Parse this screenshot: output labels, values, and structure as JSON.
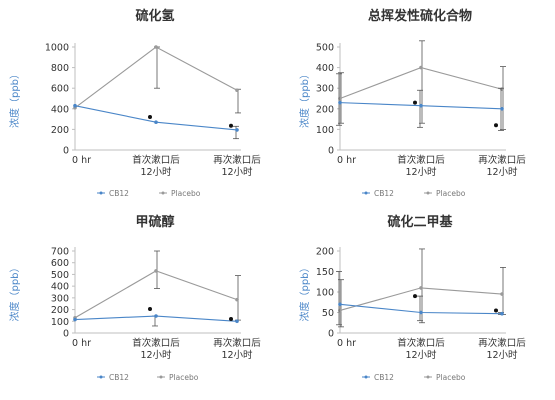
{
  "colors": {
    "cb12": "#4a86c8",
    "placebo": "#9a9a9a",
    "axis": "#bfbfbf",
    "text": "#333333",
    "ylabel": "#4a86c8"
  },
  "x_labels": [
    [
      "0 hr"
    ],
    [
      "首次漱口后",
      "12小时"
    ],
    [
      "再次漱口后",
      "12小时"
    ]
  ],
  "legend": {
    "cb12": "CB12",
    "placebo": "Placebo"
  },
  "ylabel": "浓度（ppb）",
  "chart_data": [
    {
      "type": "line",
      "title": "硫化氢",
      "ylabel": "浓度（ppb）",
      "ylim": [
        0,
        1000
      ],
      "yticks": [
        0,
        200,
        400,
        600,
        800,
        1000
      ],
      "categories": [
        "0 hr",
        "首次漱口后 12小时",
        "再次漱口后 12小时"
      ],
      "series": [
        {
          "name": "CB12",
          "values": [
            430,
            270,
            195
          ],
          "error_low": [
            430,
            270,
            110
          ],
          "error_high": [
            430,
            270,
            230
          ]
        },
        {
          "name": "Placebo",
          "values": [
            410,
            1000,
            580
          ],
          "error_low": [
            410,
            600,
            360
          ],
          "error_high": [
            410,
            1000,
            590
          ]
        }
      ],
      "markers": [
        {
          "x": 1,
          "y": 320
        },
        {
          "x": 2,
          "y": 235
        }
      ]
    },
    {
      "type": "line",
      "title": "总挥发性硫化合物",
      "ylabel": "浓度（ppb）",
      "ylim": [
        0,
        500
      ],
      "yticks": [
        0,
        100,
        200,
        300,
        400,
        500
      ],
      "categories": [
        "0 hr",
        "首次漱口后 12小时",
        "再次漱口后 12小时"
      ],
      "series": [
        {
          "name": "CB12",
          "values": [
            230,
            215,
            200
          ],
          "error_low": [
            120,
            110,
            95
          ],
          "error_high": [
            370,
            290,
            300
          ]
        },
        {
          "name": "Placebo",
          "values": [
            250,
            400,
            295
          ],
          "error_low": [
            130,
            130,
            100
          ],
          "error_high": [
            375,
            530,
            405
          ]
        }
      ],
      "markers": [
        {
          "x": 1,
          "y": 230
        },
        {
          "x": 2,
          "y": 120
        }
      ]
    },
    {
      "type": "line",
      "title": "甲硫醇",
      "ylabel": "浓度（ppb）",
      "ylim": [
        0,
        700
      ],
      "yticks": [
        0,
        100,
        200,
        300,
        400,
        500,
        600,
        700
      ],
      "categories": [
        "0 hr",
        "首次漱口后 12小时",
        "再次漱口后 12小时"
      ],
      "series": [
        {
          "name": "CB12",
          "values": [
            115,
            145,
            100
          ],
          "error_low": [
            115,
            60,
            100
          ],
          "error_high": [
            115,
            145,
            100
          ]
        },
        {
          "name": "Placebo",
          "values": [
            130,
            530,
            285
          ],
          "error_low": [
            130,
            380,
            110
          ],
          "error_high": [
            130,
            700,
            490
          ]
        }
      ],
      "markers": [
        {
          "x": 1,
          "y": 205
        },
        {
          "x": 2,
          "y": 120
        }
      ]
    },
    {
      "type": "line",
      "title": "硫化二甲基",
      "ylabel": "浓度（ppb）",
      "ylim": [
        0,
        200
      ],
      "yticks": [
        0,
        50,
        100,
        150,
        200
      ],
      "categories": [
        "0 hr",
        "首次漱口后 12小时",
        "再次漱口后 12小时"
      ],
      "series": [
        {
          "name": "CB12",
          "values": [
            70,
            50,
            47
          ],
          "error_low": [
            20,
            30,
            45
          ],
          "error_high": [
            150,
            90,
            50
          ]
        },
        {
          "name": "Placebo",
          "values": [
            55,
            110,
            95
          ],
          "error_low": [
            15,
            25,
            45
          ],
          "error_high": [
            130,
            205,
            160
          ]
        }
      ],
      "markers": [
        {
          "x": 1,
          "y": 90
        },
        {
          "x": 2,
          "y": 55
        }
      ]
    }
  ]
}
